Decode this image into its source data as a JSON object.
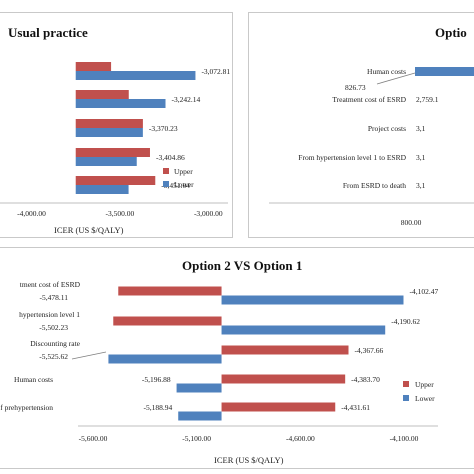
{
  "colors": {
    "upper": "#c0504d",
    "lower": "#4f81bd"
  },
  "legend": {
    "upper": "Upper",
    "lower": "Lower"
  },
  "chart_data": [
    {
      "id": "usual",
      "type": "bar",
      "title": "Usual practice",
      "xlabel": "ICER (US $/QALY)",
      "xlim": [
        -4150,
        -2900
      ],
      "xticks": [
        "-4,000.00",
        "-3,500.00",
        "-3,000.00"
      ],
      "xtick_values": [
        -4000,
        -3500,
        -3000
      ],
      "base": -3750,
      "categories": [
        "",
        "",
        "",
        "",
        ""
      ],
      "series": [
        {
          "name": "Upper",
          "values": [
            -3550,
            -3450,
            -3370,
            -3330,
            -3300
          ]
        },
        {
          "name": "Lower",
          "values": [
            -3072.81,
            -3242.14,
            -3370.23,
            -3404.86,
            -3451.04
          ]
        }
      ],
      "value_labels": [
        "-3,072.81",
        "-3,242.14",
        "-3,370.23",
        "-3,404.86",
        "-3,451.04"
      ]
    },
    {
      "id": "option",
      "type": "bar",
      "title": "Optio",
      "xlabel": "",
      "xlim": [
        790,
        1000
      ],
      "xticks": [
        "800.00"
      ],
      "xtick_values": [
        800
      ],
      "categories": [
        "Human costs",
        "Treatment cost of ESRD",
        "Project costs",
        "From hypertension level 1 to ESRD",
        "From ESRD to death"
      ],
      "value_labels_left": [
        "826.73",
        "",
        "",
        "",
        ""
      ],
      "value_labels_right": [
        "",
        "2,759.1",
        "3,1",
        "3,1",
        "3,1"
      ]
    },
    {
      "id": "opt2",
      "type": "bar",
      "title": "Option 2 VS Option 1",
      "xlabel": "ICER (US $/QALY)",
      "xlim": [
        -5660,
        -4020
      ],
      "xticks": [
        "-5,600.00",
        "-5,100.00",
        "-4,600.00",
        "-4,100.00"
      ],
      "xtick_values": [
        -5600,
        -5100,
        -4600,
        -4100
      ],
      "base": -4980,
      "categories": [
        "tment cost of ESRD",
        "hypertension level 1",
        "Discounting rate",
        "Human costs",
        "n of prehypertension"
      ],
      "series": [
        {
          "name": "Upper",
          "values": [
            -5478.11,
            -5502.23,
            -4367.66,
            -4383.7,
            -4431.61
          ]
        },
        {
          "name": "Lower",
          "values": [
            -4102.47,
            -4190.62,
            -5525.62,
            -5196.88,
            -5188.94
          ]
        }
      ],
      "labels_left": [
        "-5,478.11",
        "-5,502.23",
        "-5,525.62",
        "-5,196.88",
        "-5,188.94"
      ],
      "labels_right": [
        "-4,102.47",
        "-4,190.62",
        "-4,367.66",
        "-4,383.70",
        "-4,431.61"
      ]
    }
  ]
}
